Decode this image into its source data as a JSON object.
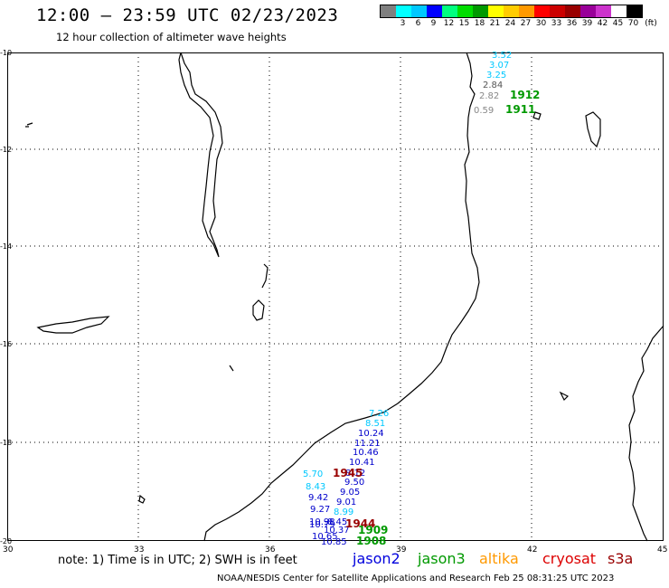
{
  "header": {
    "title": "12:00 — 23:59 UTC 02/23/2023",
    "subtitle": "12 hour collection of altimeter wave heights"
  },
  "scale": {
    "colors": [
      "#7f7f7f",
      "#00ffff",
      "#00c8ff",
      "#0000ff",
      "#00ff7f",
      "#00dd00",
      "#009900",
      "#ffff00",
      "#ffcc00",
      "#ff9900",
      "#ff0000",
      "#cc0000",
      "#990000",
      "#990099",
      "#cc33cc",
      "#ffffff",
      "#000000"
    ],
    "labels": [
      "3",
      "6",
      "9",
      "12",
      "15",
      "18",
      "21",
      "24",
      "27",
      "30",
      "33",
      "36",
      "39",
      "42",
      "45",
      "70"
    ],
    "unit": "(ft)"
  },
  "axes": {
    "lat_labels": [
      "-10",
      "-12",
      "-14",
      "-16",
      "-18",
      "-20"
    ],
    "lon_labels": [
      "30",
      "33",
      "36",
      "39",
      "42",
      "45"
    ]
  },
  "observations_north": [
    {
      "text": "3.52",
      "color": "#00c8ff"
    },
    {
      "text": "3.07",
      "color": "#00c8ff"
    },
    {
      "text": "3.25",
      "color": "#00c8ff"
    },
    {
      "text": "2.84",
      "color": "#555555"
    },
    {
      "text": "2.82",
      "color": "#888888"
    },
    {
      "text": "0.59",
      "color": "#888888"
    }
  ],
  "times_north": [
    "1912",
    "1911"
  ],
  "observations_south": [
    {
      "text": "7.26",
      "color": "#00c8ff"
    },
    {
      "text": "8.51",
      "color": "#00c8ff"
    },
    {
      "text": "10.24",
      "color": "#0000cc"
    },
    {
      "text": "11.21",
      "color": "#0000cc"
    },
    {
      "text": "10.46",
      "color": "#0000cc"
    },
    {
      "text": "10.41",
      "color": "#0000cc"
    },
    {
      "text": "5.70",
      "color": "#00c8ff"
    },
    {
      "text": "9.50",
      "color": "#0000cc"
    },
    {
      "text": "8.43",
      "color": "#00c8ff"
    },
    {
      "text": "9.05",
      "color": "#0000cc"
    },
    {
      "text": "9.42",
      "color": "#0000cc"
    },
    {
      "text": "9.01",
      "color": "#0000cc"
    },
    {
      "text": "9.27",
      "color": "#0000cc"
    },
    {
      "text": "8.99",
      "color": "#00c8ff"
    },
    {
      "text": "10.37",
      "color": "#0000cc"
    },
    {
      "text": "10.65",
      "color": "#0000cc"
    },
    {
      "text": "10.85",
      "color": "#0000cc"
    }
  ],
  "times_south": [
    {
      "text": "1945",
      "color": "#990000"
    },
    {
      "text": "1944",
      "color": "#990000"
    },
    {
      "text": "1909",
      "color": "#009900"
    },
    {
      "text": "1908",
      "color": "#009900"
    }
  ],
  "footer": {
    "note": "note: 1) Time is in UTC; 2) SWH is in feet",
    "credit": "NOAA/NESDIS Center for Satellite Applications and Research   Feb 25 08:31:25 UTC 2023"
  },
  "satellites": [
    {
      "name": "jason2",
      "color": "#0000dd"
    },
    {
      "name": "jason3",
      "color": "#009900"
    },
    {
      "name": "altika",
      "color": "#ff9900"
    },
    {
      "name": "cryosat",
      "color": "#dd0000"
    },
    {
      "name": "s3a",
      "color": "#990000"
    }
  ]
}
